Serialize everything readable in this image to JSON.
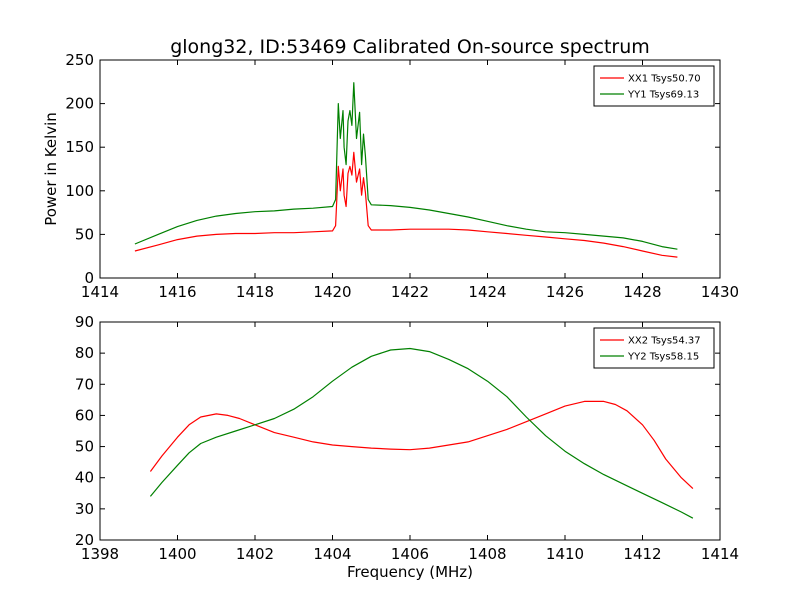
{
  "chart_data": [
    {
      "type": "line",
      "title": "glong32, ID:53469 Calibrated On-source spectrum",
      "xlabel": "",
      "ylabel": "Power in Kelvin",
      "xlim": [
        1414,
        1430
      ],
      "ylim": [
        0,
        250
      ],
      "xticks": [
        "1414",
        "1416",
        "1418",
        "1420",
        "1422",
        "1424",
        "1426",
        "1428",
        "1430"
      ],
      "yticks": [
        "0",
        "50",
        "100",
        "150",
        "200",
        "250"
      ],
      "grid": false,
      "legend_position": "top-right",
      "series": [
        {
          "name": "XX1 Tsys50.70",
          "color": "#ff0000",
          "x": [
            1414.9,
            1415.5,
            1416.0,
            1416.5,
            1417.0,
            1417.5,
            1418.0,
            1418.5,
            1419.0,
            1419.5,
            1420.0,
            1420.08,
            1420.15,
            1420.2,
            1420.27,
            1420.3,
            1420.35,
            1420.4,
            1420.45,
            1420.5,
            1420.55,
            1420.62,
            1420.7,
            1420.75,
            1420.8,
            1420.85,
            1420.92,
            1421.0,
            1421.5,
            1422.0,
            1422.5,
            1423.0,
            1423.5,
            1424.0,
            1424.5,
            1425.0,
            1425.5,
            1426.0,
            1426.5,
            1427.0,
            1427.5,
            1428.0,
            1428.5,
            1428.9
          ],
          "y": [
            31,
            38,
            44,
            48,
            50,
            51,
            51,
            52,
            52,
            53,
            54,
            60,
            128,
            100,
            125,
            95,
            82,
            120,
            128,
            118,
            144,
            110,
            125,
            95,
            115,
            98,
            60,
            55,
            55,
            56,
            56,
            56,
            55,
            53,
            51,
            49,
            47,
            45,
            43,
            40,
            36,
            31,
            26,
            24
          ]
        },
        {
          "name": "YY1 Tsys69.13",
          "color": "#008000",
          "x": [
            1414.9,
            1415.5,
            1416.0,
            1416.5,
            1417.0,
            1417.5,
            1418.0,
            1418.5,
            1419.0,
            1419.5,
            1420.0,
            1420.08,
            1420.15,
            1420.2,
            1420.27,
            1420.3,
            1420.35,
            1420.4,
            1420.45,
            1420.5,
            1420.55,
            1420.62,
            1420.7,
            1420.75,
            1420.8,
            1420.85,
            1420.92,
            1421.0,
            1421.5,
            1422.0,
            1422.5,
            1423.0,
            1423.5,
            1424.0,
            1424.5,
            1425.0,
            1425.5,
            1426.0,
            1426.5,
            1427.0,
            1427.5,
            1428.0,
            1428.5,
            1428.9
          ],
          "y": [
            39,
            50,
            59,
            66,
            71,
            74,
            76,
            77,
            79,
            80,
            82,
            90,
            200,
            160,
            192,
            150,
            130,
            180,
            192,
            175,
            224,
            160,
            190,
            130,
            165,
            140,
            90,
            84,
            83,
            81,
            78,
            74,
            70,
            65,
            60,
            56,
            53,
            52,
            50,
            48,
            46,
            42,
            36,
            33
          ]
        }
      ]
    },
    {
      "type": "line",
      "title": "",
      "xlabel": "Frequency (MHz)",
      "ylabel": "",
      "xlim": [
        1398,
        1414
      ],
      "ylim": [
        20,
        90
      ],
      "xticks": [
        "1398",
        "1400",
        "1402",
        "1404",
        "1406",
        "1408",
        "1410",
        "1412",
        "1414"
      ],
      "yticks": [
        "20",
        "30",
        "40",
        "50",
        "60",
        "70",
        "80",
        "90"
      ],
      "grid": false,
      "legend_position": "top-right",
      "series": [
        {
          "name": "XX2 Tsys54.37",
          "color": "#ff0000",
          "x": [
            1399.3,
            1399.6,
            1400.0,
            1400.3,
            1400.6,
            1401.0,
            1401.3,
            1401.6,
            1402.0,
            1402.5,
            1403.0,
            1403.5,
            1404.0,
            1404.5,
            1405.0,
            1405.5,
            1406.0,
            1406.5,
            1407.0,
            1407.5,
            1408.0,
            1408.5,
            1409.0,
            1409.5,
            1410.0,
            1410.5,
            1411.0,
            1411.3,
            1411.6,
            1412.0,
            1412.3,
            1412.6,
            1413.0,
            1413.3
          ],
          "y": [
            42,
            47,
            53,
            57,
            59.5,
            60.5,
            60,
            59,
            57,
            54.5,
            53,
            51.5,
            50.5,
            50,
            49.5,
            49.2,
            49,
            49.5,
            50.5,
            51.5,
            53.5,
            55.5,
            58,
            60.5,
            63,
            64.5,
            64.5,
            63.5,
            61.5,
            57,
            52,
            46,
            40,
            36.5
          ]
        },
        {
          "name": "YY2 Tsys58.15",
          "color": "#008000",
          "x": [
            1399.3,
            1399.6,
            1400.0,
            1400.3,
            1400.6,
            1401.0,
            1401.5,
            1402.0,
            1402.5,
            1403.0,
            1403.5,
            1404.0,
            1404.5,
            1405.0,
            1405.5,
            1406.0,
            1406.5,
            1407.0,
            1407.5,
            1408.0,
            1408.5,
            1409.0,
            1409.5,
            1410.0,
            1410.5,
            1411.0,
            1411.5,
            1412.0,
            1412.5,
            1413.0,
            1413.3
          ],
          "y": [
            34,
            38.5,
            44,
            48,
            51,
            53,
            55,
            57,
            59,
            62,
            66,
            71,
            75.5,
            79,
            81,
            81.5,
            80.5,
            78,
            75,
            71,
            66,
            59.5,
            53.5,
            48.5,
            44.5,
            41,
            38,
            35,
            32,
            29,
            27
          ]
        }
      ]
    }
  ]
}
